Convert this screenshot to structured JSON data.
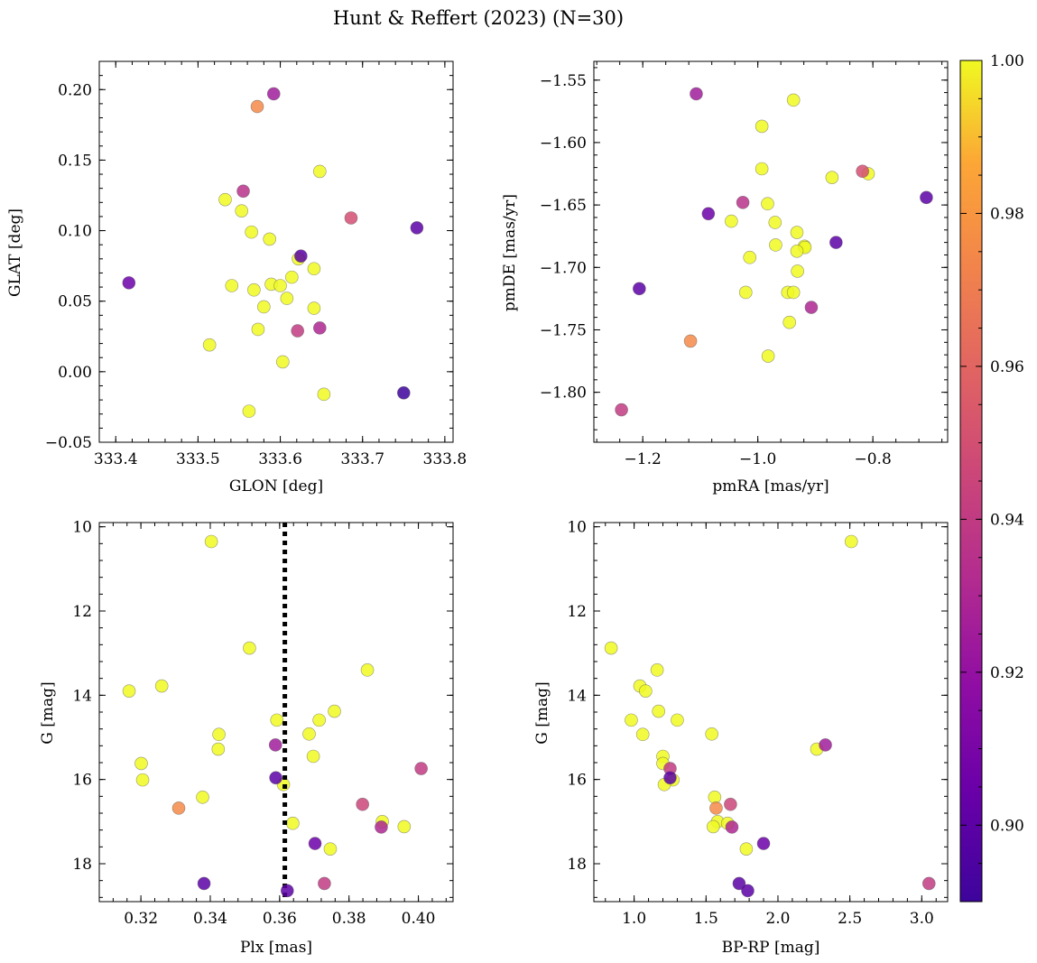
{
  "figure": {
    "title": "Hunt & Reffert (2023) (N=30)"
  },
  "colorbar": {
    "range": [
      0.89,
      1.0
    ],
    "ticks": [
      0.9,
      0.92,
      0.94,
      0.96,
      0.98,
      1.0
    ],
    "tick_labels": [
      "0.90",
      "0.92",
      "0.94",
      "0.96",
      "0.98",
      "1.00"
    ],
    "colormap": "plasma"
  },
  "chart_data": [
    {
      "type": "scatter",
      "panel": "top-left",
      "xlabel": "GLON [deg]",
      "ylabel": "GLAT [deg]",
      "xlim": [
        333.38,
        333.81
      ],
      "ylim": [
        -0.05,
        0.22
      ],
      "xticks": [
        333.4,
        333.5,
        333.6,
        333.7,
        333.8
      ],
      "xtick_labels": [
        "333.4",
        "333.5",
        "333.6",
        "333.7",
        "333.8"
      ],
      "yticks": [
        -0.05,
        0.0,
        0.05,
        0.1,
        0.15,
        0.2
      ],
      "ytick_labels": [
        "−0.05",
        "0.00",
        "0.05",
        "0.10",
        "0.15",
        "0.20"
      ],
      "points": [
        {
          "x": 333.592,
          "y": 0.197,
          "c": 0.925
        },
        {
          "x": 333.572,
          "y": 0.188,
          "c": 0.975
        },
        {
          "x": 333.648,
          "y": 0.142,
          "c": 1.0
        },
        {
          "x": 333.555,
          "y": 0.128,
          "c": 0.935
        },
        {
          "x": 333.533,
          "y": 0.122,
          "c": 1.0
        },
        {
          "x": 333.553,
          "y": 0.114,
          "c": 1.0
        },
        {
          "x": 333.686,
          "y": 0.109,
          "c": 0.95
        },
        {
          "x": 333.766,
          "y": 0.102,
          "c": 0.9
        },
        {
          "x": 333.565,
          "y": 0.099,
          "c": 1.0
        },
        {
          "x": 333.587,
          "y": 0.094,
          "c": 1.0
        },
        {
          "x": 333.625,
          "y": 0.082,
          "c": 0.9
        },
        {
          "x": 333.622,
          "y": 0.08,
          "c": 1.0
        },
        {
          "x": 333.641,
          "y": 0.073,
          "c": 1.0
        },
        {
          "x": 333.614,
          "y": 0.067,
          "c": 1.0
        },
        {
          "x": 333.416,
          "y": 0.063,
          "c": 0.905
        },
        {
          "x": 333.589,
          "y": 0.062,
          "c": 1.0
        },
        {
          "x": 333.541,
          "y": 0.061,
          "c": 1.0
        },
        {
          "x": 333.6,
          "y": 0.061,
          "c": 1.0
        },
        {
          "x": 333.568,
          "y": 0.058,
          "c": 1.0
        },
        {
          "x": 333.608,
          "y": 0.052,
          "c": 1.0
        },
        {
          "x": 333.58,
          "y": 0.046,
          "c": 1.0
        },
        {
          "x": 333.641,
          "y": 0.045,
          "c": 1.0
        },
        {
          "x": 333.648,
          "y": 0.031,
          "c": 0.93
        },
        {
          "x": 333.573,
          "y": 0.03,
          "c": 1.0
        },
        {
          "x": 333.621,
          "y": 0.029,
          "c": 0.94
        },
        {
          "x": 333.514,
          "y": 0.019,
          "c": 1.0
        },
        {
          "x": 333.603,
          "y": 0.007,
          "c": 1.0
        },
        {
          "x": 333.75,
          "y": -0.015,
          "c": 0.89
        },
        {
          "x": 333.653,
          "y": -0.016,
          "c": 1.0
        },
        {
          "x": 333.562,
          "y": -0.028,
          "c": 1.0
        }
      ]
    },
    {
      "type": "scatter",
      "panel": "top-right",
      "xlabel": "pmRA [mas/yr]",
      "ylabel": "pmDE [mas/yr]",
      "xlim": [
        -1.285,
        -0.67
      ],
      "ylim": [
        -1.84,
        -1.535
      ],
      "xticks": [
        -1.2,
        -1.0,
        -0.8
      ],
      "xtick_labels": [
        "−1.2",
        "−1.0",
        "−0.8"
      ],
      "yticks": [
        -1.8,
        -1.75,
        -1.7,
        -1.65,
        -1.6,
        -1.55
      ],
      "ytick_labels": [
        "−1.80",
        "−1.75",
        "−1.70",
        "−1.65",
        "−1.60",
        "−1.55"
      ],
      "points": [
        {
          "x": -1.107,
          "y": -1.561,
          "c": 0.925
        },
        {
          "x": -0.938,
          "y": -1.566,
          "c": 1.0
        },
        {
          "x": -0.993,
          "y": -1.587,
          "c": 1.0
        },
        {
          "x": -0.993,
          "y": -1.621,
          "c": 1.0
        },
        {
          "x": -0.871,
          "y": -1.628,
          "c": 1.0
        },
        {
          "x": -0.818,
          "y": -1.623,
          "c": 0.95
        },
        {
          "x": -0.808,
          "y": -1.625,
          "c": 1.0
        },
        {
          "x": -0.707,
          "y": -1.644,
          "c": 0.9
        },
        {
          "x": -1.026,
          "y": -1.648,
          "c": 0.935
        },
        {
          "x": -0.983,
          "y": -1.649,
          "c": 1.0
        },
        {
          "x": -1.086,
          "y": -1.657,
          "c": 0.905
        },
        {
          "x": -1.046,
          "y": -1.663,
          "c": 1.0
        },
        {
          "x": -0.97,
          "y": -1.664,
          "c": 1.0
        },
        {
          "x": -0.932,
          "y": -1.672,
          "c": 1.0
        },
        {
          "x": -0.864,
          "y": -1.68,
          "c": 0.9
        },
        {
          "x": -0.969,
          "y": -1.682,
          "c": 1.0
        },
        {
          "x": -0.919,
          "y": -1.683,
          "c": 1.0
        },
        {
          "x": -0.918,
          "y": -1.684,
          "c": 1.0
        },
        {
          "x": -0.932,
          "y": -1.687,
          "c": 1.0
        },
        {
          "x": -1.014,
          "y": -1.692,
          "c": 1.0
        },
        {
          "x": -0.931,
          "y": -1.703,
          "c": 1.0
        },
        {
          "x": -1.206,
          "y": -1.717,
          "c": 0.9
        },
        {
          "x": -1.021,
          "y": -1.72,
          "c": 1.0
        },
        {
          "x": -0.948,
          "y": -1.72,
          "c": 1.0
        },
        {
          "x": -0.938,
          "y": -1.72,
          "c": 1.0
        },
        {
          "x": -0.907,
          "y": -1.732,
          "c": 0.93
        },
        {
          "x": -0.945,
          "y": -1.744,
          "c": 1.0
        },
        {
          "x": -1.117,
          "y": -1.759,
          "c": 0.975
        },
        {
          "x": -0.982,
          "y": -1.771,
          "c": 1.0
        },
        {
          "x": -1.237,
          "y": -1.814,
          "c": 0.94
        }
      ]
    },
    {
      "type": "scatter",
      "panel": "bottom-left",
      "xlabel": "Plx [mas]",
      "ylabel": "G [mag]",
      "xlim": [
        0.308,
        0.41
      ],
      "ylim": [
        18.9,
        9.9
      ],
      "y_inverted": true,
      "xticks": [
        0.32,
        0.34,
        0.36,
        0.38,
        0.4
      ],
      "xtick_labels": [
        "0.32",
        "0.34",
        "0.36",
        "0.38",
        "0.40"
      ],
      "yticks": [
        10,
        12,
        14,
        16,
        18
      ],
      "ytick_labels": [
        "10",
        "12",
        "14",
        "16",
        "18"
      ],
      "vline": {
        "x": 0.3615,
        "style": "dotted",
        "color": "#000000"
      },
      "points": [
        {
          "x": 0.3403,
          "y": 10.35,
          "c": 1.0
        },
        {
          "x": 0.3513,
          "y": 12.88,
          "c": 1.0
        },
        {
          "x": 0.3853,
          "y": 13.4,
          "c": 1.0
        },
        {
          "x": 0.326,
          "y": 13.78,
          "c": 1.0
        },
        {
          "x": 0.3166,
          "y": 13.9,
          "c": 1.0
        },
        {
          "x": 0.3758,
          "y": 14.38,
          "c": 1.0
        },
        {
          "x": 0.3592,
          "y": 14.59,
          "c": 1.0
        },
        {
          "x": 0.3714,
          "y": 14.59,
          "c": 1.0
        },
        {
          "x": 0.3425,
          "y": 14.93,
          "c": 1.0
        },
        {
          "x": 0.3685,
          "y": 14.92,
          "c": 1.0
        },
        {
          "x": 0.3588,
          "y": 15.18,
          "c": 0.925
        },
        {
          "x": 0.3423,
          "y": 15.28,
          "c": 1.0
        },
        {
          "x": 0.3697,
          "y": 15.45,
          "c": 1.0
        },
        {
          "x": 0.3201,
          "y": 15.62,
          "c": 1.0
        },
        {
          "x": 0.4008,
          "y": 15.74,
          "c": 0.94
        },
        {
          "x": 0.3589,
          "y": 15.96,
          "c": 0.9
        },
        {
          "x": 0.3205,
          "y": 16.01,
          "c": 1.0
        },
        {
          "x": 0.3611,
          "y": 16.12,
          "c": 1.0
        },
        {
          "x": 0.3378,
          "y": 16.42,
          "c": 1.0
        },
        {
          "x": 0.3839,
          "y": 16.59,
          "c": 0.945
        },
        {
          "x": 0.3309,
          "y": 16.68,
          "c": 0.975
        },
        {
          "x": 0.3896,
          "y": 17.0,
          "c": 1.0
        },
        {
          "x": 0.3638,
          "y": 17.04,
          "c": 1.0
        },
        {
          "x": 0.3959,
          "y": 17.12,
          "c": 1.0
        },
        {
          "x": 0.3893,
          "y": 17.13,
          "c": 0.93
        },
        {
          "x": 0.3702,
          "y": 17.52,
          "c": 0.905
        },
        {
          "x": 0.3746,
          "y": 17.65,
          "c": 1.0
        },
        {
          "x": 0.3382,
          "y": 18.47,
          "c": 0.9
        },
        {
          "x": 0.3729,
          "y": 18.47,
          "c": 0.94
        },
        {
          "x": 0.3622,
          "y": 18.64,
          "c": 0.9
        }
      ]
    },
    {
      "type": "scatter",
      "panel": "bottom-right",
      "xlabel": "BP-RP [mag]",
      "ylabel": "G [mag]",
      "xlim": [
        0.72,
        3.18
      ],
      "ylim": [
        18.9,
        9.9
      ],
      "y_inverted": true,
      "xticks": [
        1.0,
        1.5,
        2.0,
        2.5,
        3.0
      ],
      "xtick_labels": [
        "1.0",
        "1.5",
        "2.0",
        "2.5",
        "3.0"
      ],
      "yticks": [
        10,
        12,
        14,
        16,
        18
      ],
      "ytick_labels": [
        "10",
        "12",
        "14",
        "16",
        "18"
      ],
      "points": [
        {
          "x": 2.51,
          "y": 10.35,
          "c": 1.0
        },
        {
          "x": 0.84,
          "y": 12.88,
          "c": 1.0
        },
        {
          "x": 1.16,
          "y": 13.4,
          "c": 1.0
        },
        {
          "x": 1.04,
          "y": 13.78,
          "c": 1.0
        },
        {
          "x": 1.08,
          "y": 13.9,
          "c": 1.0
        },
        {
          "x": 1.17,
          "y": 14.38,
          "c": 1.0
        },
        {
          "x": 0.98,
          "y": 14.59,
          "c": 1.0
        },
        {
          "x": 1.3,
          "y": 14.59,
          "c": 1.0
        },
        {
          "x": 1.06,
          "y": 14.93,
          "c": 1.0
        },
        {
          "x": 1.54,
          "y": 14.92,
          "c": 1.0
        },
        {
          "x": 2.33,
          "y": 15.18,
          "c": 0.925
        },
        {
          "x": 2.27,
          "y": 15.28,
          "c": 1.0
        },
        {
          "x": 1.2,
          "y": 15.45,
          "c": 1.0
        },
        {
          "x": 1.2,
          "y": 15.62,
          "c": 1.0
        },
        {
          "x": 1.25,
          "y": 15.74,
          "c": 0.94
        },
        {
          "x": 1.25,
          "y": 15.96,
          "c": 0.9
        },
        {
          "x": 1.27,
          "y": 16.01,
          "c": 1.0
        },
        {
          "x": 1.21,
          "y": 16.12,
          "c": 1.0
        },
        {
          "x": 1.56,
          "y": 16.42,
          "c": 1.0
        },
        {
          "x": 1.67,
          "y": 16.59,
          "c": 0.945
        },
        {
          "x": 1.57,
          "y": 16.68,
          "c": 0.975
        },
        {
          "x": 1.58,
          "y": 17.0,
          "c": 1.0
        },
        {
          "x": 1.65,
          "y": 17.04,
          "c": 1.0
        },
        {
          "x": 1.55,
          "y": 17.12,
          "c": 1.0
        },
        {
          "x": 1.68,
          "y": 17.13,
          "c": 0.93
        },
        {
          "x": 1.9,
          "y": 17.52,
          "c": 0.905
        },
        {
          "x": 1.78,
          "y": 17.65,
          "c": 1.0
        },
        {
          "x": 1.73,
          "y": 18.47,
          "c": 0.9
        },
        {
          "x": 3.05,
          "y": 18.47,
          "c": 0.94
        },
        {
          "x": 1.79,
          "y": 18.64,
          "c": 0.9
        }
      ]
    }
  ]
}
